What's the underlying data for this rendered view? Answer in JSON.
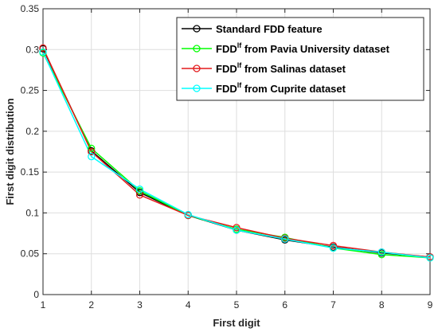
{
  "chart_data": {
    "type": "line",
    "x": [
      1,
      2,
      3,
      4,
      5,
      6,
      7,
      8,
      9
    ],
    "xlabel": "First digit",
    "ylabel": "First digit distribution",
    "xlim": [
      1,
      9
    ],
    "ylim": [
      0,
      0.35
    ],
    "xticks": [
      "1",
      "2",
      "3",
      "4",
      "5",
      "6",
      "7",
      "8",
      "9"
    ],
    "yticks": [
      "0",
      "0.05",
      "0.1",
      "0.15",
      "0.2",
      "0.25",
      "0.3",
      "0.35"
    ],
    "grid": true,
    "legend_position": "top-right",
    "series": [
      {
        "name": "Standard FDD feature",
        "legend": {
          "pre": "Standard FDD feature",
          "sup": "",
          "post": ""
        },
        "color": "#000000",
        "values": [
          0.301,
          0.176,
          0.125,
          0.097,
          0.079,
          0.067,
          0.058,
          0.051,
          0.046
        ]
      },
      {
        "name": "FDDlf from Pavia University dataset",
        "legend": {
          "pre": "FDD",
          "sup": "lf",
          "post": " from Pavia University dataset"
        },
        "color": "#00ff00",
        "values": [
          0.296,
          0.179,
          0.127,
          0.097,
          0.08,
          0.07,
          0.057,
          0.049,
          0.045
        ]
      },
      {
        "name": "FDDlf from Salinas dataset",
        "legend": {
          "pre": "FDD",
          "sup": "lf",
          "post": " from Salinas dataset"
        },
        "color": "#e31a1c",
        "values": [
          0.302,
          0.175,
          0.122,
          0.097,
          0.082,
          0.069,
          0.06,
          0.052,
          0.046
        ]
      },
      {
        "name": "FDDlf from Cuprite dataset",
        "legend": {
          "pre": "FDD",
          "sup": "lf",
          "post": " from Cuprite dataset"
        },
        "color": "#00ffff",
        "values": [
          0.297,
          0.169,
          0.129,
          0.098,
          0.079,
          0.068,
          0.057,
          0.052,
          0.045
        ]
      }
    ]
  }
}
